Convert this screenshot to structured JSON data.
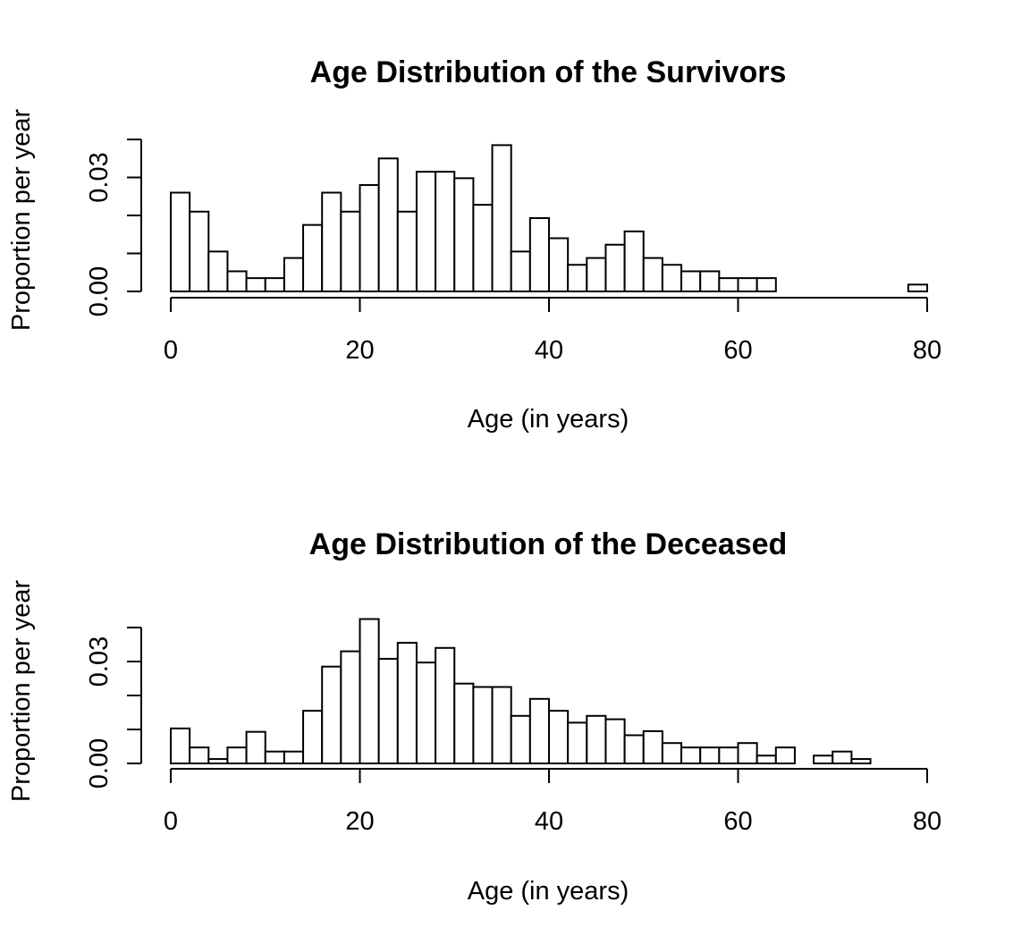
{
  "chart_data": [
    {
      "type": "bar",
      "title": "Age Distribution of the Survivors",
      "xlabel": "Age (in years)",
      "ylabel": "Proportion per year",
      "bin_width": 2,
      "bin_start": 0,
      "xlim": [
        0,
        80
      ],
      "ylim": [
        0,
        0.04
      ],
      "x_ticks": [
        0,
        20,
        40,
        60,
        80
      ],
      "y_ticks": [
        0,
        0.01,
        0.02,
        0.03,
        0.04
      ],
      "y_tick_labels": [
        "0.00",
        "",
        "",
        "0.03",
        ""
      ],
      "values": [
        0.026,
        0.021,
        0.0105,
        0.0053,
        0.0035,
        0.0035,
        0.0088,
        0.0175,
        0.026,
        0.021,
        0.028,
        0.035,
        0.021,
        0.0315,
        0.0315,
        0.0298,
        0.0228,
        0.0385,
        0.0105,
        0.0193,
        0.014,
        0.007,
        0.0088,
        0.0123,
        0.0158,
        0.0088,
        0.007,
        0.0053,
        0.0053,
        0.0035,
        0.0035,
        0.0035,
        0,
        0,
        0,
        0,
        0,
        0,
        0,
        0.0018
      ]
    },
    {
      "type": "bar",
      "title": "Age Distribution of the Deceased",
      "xlabel": "Age (in years)",
      "ylabel": "Proportion per year",
      "bin_width": 2,
      "bin_start": 0,
      "xlim": [
        0,
        80
      ],
      "ylim": [
        0,
        0.04
      ],
      "x_ticks": [
        0,
        20,
        40,
        60,
        80
      ],
      "y_ticks": [
        0,
        0.01,
        0.02,
        0.03,
        0.04
      ],
      "y_tick_labels": [
        "0.00",
        "",
        "",
        "0.03",
        ""
      ],
      "values": [
        0.0103,
        0.0047,
        0.0013,
        0.0047,
        0.0093,
        0.0035,
        0.0035,
        0.0155,
        0.0285,
        0.033,
        0.0425,
        0.0308,
        0.0355,
        0.0297,
        0.034,
        0.0235,
        0.0225,
        0.0225,
        0.014,
        0.019,
        0.0155,
        0.012,
        0.014,
        0.013,
        0.0083,
        0.0095,
        0.006,
        0.0047,
        0.0047,
        0.0047,
        0.006,
        0.0023,
        0.0047,
        0,
        0.0023,
        0.0035,
        0.0013,
        0,
        0,
        0
      ]
    }
  ]
}
